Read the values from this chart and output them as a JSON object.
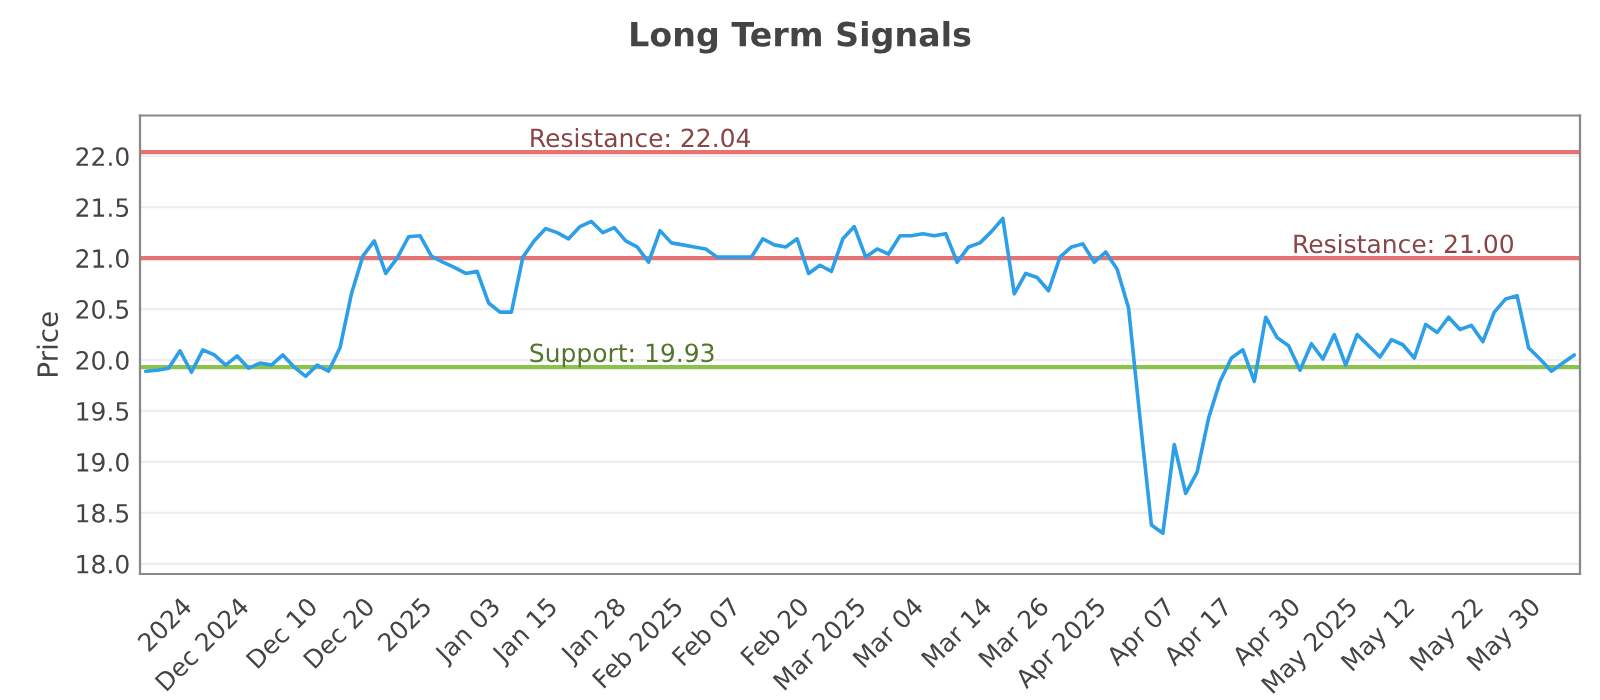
{
  "chart_data": {
    "type": "line",
    "title": "Long Term Signals",
    "ylabel": "Price",
    "categories": [
      null,
      null,
      null,
      "2024",
      null,
      null,
      null,
      null,
      "Dec 2024",
      null,
      null,
      null,
      null,
      null,
      "Dec 10",
      null,
      null,
      null,
      null,
      "Dec 20",
      null,
      null,
      null,
      null,
      "2025",
      null,
      null,
      null,
      null,
      null,
      "Jan 03",
      null,
      null,
      null,
      null,
      "Jan 15",
      null,
      null,
      null,
      null,
      null,
      "Jan 28",
      null,
      null,
      null,
      null,
      "Feb 2025",
      null,
      null,
      null,
      null,
      "Feb 07",
      null,
      null,
      null,
      null,
      null,
      "Feb 20",
      null,
      null,
      null,
      null,
      "Mar 2025",
      null,
      null,
      null,
      null,
      "Mar 04",
      null,
      null,
      null,
      null,
      null,
      "Mar 14",
      null,
      null,
      null,
      null,
      "Mar 26",
      null,
      null,
      null,
      null,
      "Apr 2025",
      null,
      null,
      null,
      null,
      null,
      "Apr 07",
      null,
      null,
      null,
      null,
      "Apr 17",
      null,
      null,
      null,
      null,
      null,
      "Apr 30",
      null,
      null,
      null,
      null,
      "May 2025",
      null,
      null,
      null,
      null,
      "May 12",
      null,
      null,
      null,
      null,
      null,
      "May 22",
      null,
      null,
      null,
      null,
      "May 30",
      null,
      null,
      null,
      null
    ],
    "series": [
      {
        "color": "#2d9fe8",
        "values": [
          19.89,
          19.9,
          19.92,
          20.09,
          19.88,
          20.1,
          20.05,
          19.95,
          20.04,
          19.92,
          19.97,
          19.95,
          20.05,
          19.93,
          19.84,
          19.95,
          19.89,
          20.12,
          20.65,
          21.02,
          21.17,
          20.85,
          21.0,
          21.21,
          21.22,
          21.02,
          20.96,
          20.91,
          20.85,
          20.87,
          20.56,
          20.47,
          20.47,
          21.01,
          21.17,
          21.29,
          21.25,
          21.19,
          21.31,
          21.36,
          21.25,
          21.3,
          21.17,
          21.11,
          20.96,
          21.27,
          21.15,
          21.13,
          21.11,
          21.09,
          21.01,
          21.01,
          21.01,
          21.01,
          21.19,
          21.13,
          21.11,
          21.19,
          20.85,
          20.93,
          20.87,
          21.19,
          21.31,
          21.01,
          21.09,
          21.04,
          21.22,
          21.22,
          21.24,
          21.22,
          21.24,
          20.96,
          21.11,
          21.15,
          21.26,
          21.39,
          20.65,
          20.85,
          20.81,
          20.68,
          21.01,
          21.11,
          21.14,
          20.96,
          21.06,
          20.89,
          20.51,
          19.43,
          18.38,
          18.3,
          19.17,
          18.69,
          18.9,
          19.43,
          19.79,
          20.02,
          20.1,
          19.79,
          20.42,
          20.22,
          20.14,
          19.9,
          20.16,
          20.01,
          20.25,
          19.95,
          20.25,
          20.14,
          20.03,
          20.2,
          20.15,
          20.02,
          20.35,
          20.27,
          20.42,
          20.3,
          20.34,
          20.18,
          20.47,
          20.6,
          20.63,
          20.12,
          20.01,
          19.89,
          19.97,
          20.05
        ]
      }
    ],
    "ylim": [
      17.9,
      22.4
    ],
    "yticks": [
      {
        "value": 18.0,
        "label": "18.0"
      },
      {
        "value": 18.5,
        "label": "18.5"
      },
      {
        "value": 19.0,
        "label": "19.0"
      },
      {
        "value": 19.5,
        "label": "19.5"
      },
      {
        "value": 20.0,
        "label": "20.0"
      },
      {
        "value": 20.5,
        "label": "20.5"
      },
      {
        "value": 21.0,
        "label": "21.0"
      },
      {
        "value": 21.5,
        "label": "21.5"
      },
      {
        "value": 22.0,
        "label": "22.0"
      }
    ],
    "grid": "y",
    "legend": false,
    "marker": "none",
    "line_style": "solid",
    "ref_lines": [
      {
        "axis": "y",
        "value": 22.04,
        "label": "Resistance: 22.04",
        "color": "#e57373"
      },
      {
        "axis": "y",
        "value": 21.0,
        "label": "Resistance: 21.00",
        "color": "#e57373"
      },
      {
        "axis": "y",
        "value": 19.93,
        "label": "Support: 19.93",
        "color": "#8bc34a"
      }
    ]
  }
}
